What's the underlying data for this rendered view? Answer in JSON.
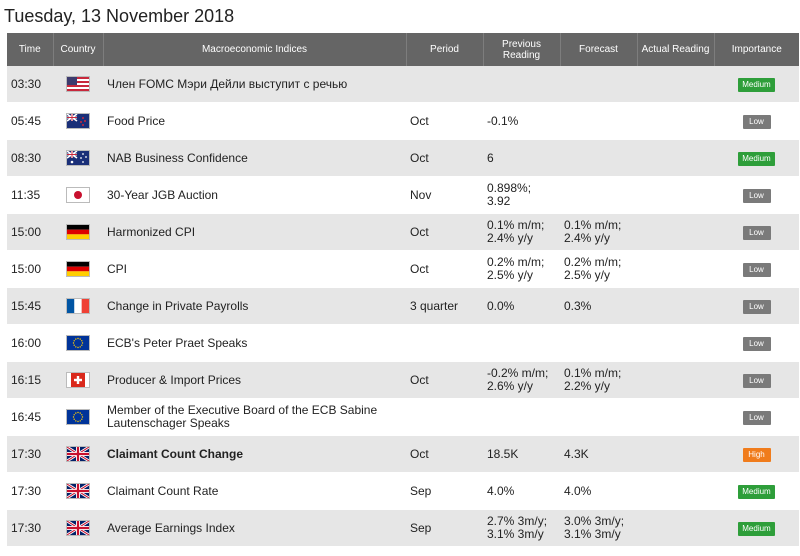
{
  "date_title": "Tuesday, 13 November 2018",
  "columns": {
    "time": "Time",
    "country": "Country",
    "indices": "Macroeconomic Indices",
    "period": "Period",
    "previous": "Previous Reading",
    "forecast": "Forecast",
    "actual": "Actual Reading",
    "importance": "Importance"
  },
  "colors": {
    "medium": "#2e9e3a",
    "low": "#7a7a7a",
    "high": "#f07c1c",
    "header": "#656565"
  },
  "rows": [
    {
      "time": "03:30",
      "flag": "us-flag-icon",
      "name": "Член FOMC Мэри Дейли выступит с речью",
      "period": "",
      "previous": "",
      "forecast": "",
      "actual": "",
      "importance": "Medium",
      "level": "medium",
      "bold": false
    },
    {
      "time": "05:45",
      "flag": "nz-flag-icon",
      "name": "Food Price",
      "period": "Oct",
      "previous": "-0.1%",
      "forecast": "",
      "actual": "",
      "importance": "Low",
      "level": "low",
      "bold": false
    },
    {
      "time": "08:30",
      "flag": "au-flag-icon",
      "name": "NAB Business Confidence",
      "period": "Oct",
      "previous": "6",
      "forecast": "",
      "actual": "",
      "importance": "Medium",
      "level": "medium",
      "bold": false
    },
    {
      "time": "11:35",
      "flag": "jp-flag-icon",
      "name": "30-Year JGB Auction",
      "period": "Nov",
      "previous": "0.898%;\n3.92",
      "forecast": "",
      "actual": "",
      "importance": "Low",
      "level": "low",
      "bold": false
    },
    {
      "time": "15:00",
      "flag": "de-flag-icon",
      "name": "Harmonized CPI",
      "period": "Oct",
      "previous": "0.1% m/m;\n2.4% y/y",
      "forecast": "0.1% m/m;\n2.4% y/y",
      "actual": "",
      "importance": "Low",
      "level": "low",
      "bold": false
    },
    {
      "time": "15:00",
      "flag": "de-flag-icon",
      "name": "CPI",
      "period": "Oct",
      "previous": "0.2% m/m;\n2.5% y/y",
      "forecast": "0.2% m/m;\n2.5% y/y",
      "actual": "",
      "importance": "Low",
      "level": "low",
      "bold": false
    },
    {
      "time": "15:45",
      "flag": "fr-flag-icon",
      "name": "Change in Private Payrolls",
      "period": "3 quarter",
      "previous": "0.0%",
      "forecast": "0.3%",
      "actual": "",
      "importance": "Low",
      "level": "low",
      "bold": false
    },
    {
      "time": "16:00",
      "flag": "eu-flag-icon",
      "name": "ECB's Peter Praet Speaks",
      "period": "",
      "previous": "",
      "forecast": "",
      "actual": "",
      "importance": "Low",
      "level": "low",
      "bold": false
    },
    {
      "time": "16:15",
      "flag": "ch-flag-icon",
      "name": "Producer & Import Prices",
      "period": "Oct",
      "previous": "-0.2% m/m;\n2.6% y/y",
      "forecast": "0.1% m/m;\n2.2% y/y",
      "actual": "",
      "importance": "Low",
      "level": "low",
      "bold": false
    },
    {
      "time": "16:45",
      "flag": "eu-flag-icon",
      "name": "Member of the Executive Board of the ECB Sabine Lautenschager Speaks",
      "period": "",
      "previous": "",
      "forecast": "",
      "actual": "",
      "importance": "Low",
      "level": "low",
      "bold": false
    },
    {
      "time": "17:30",
      "flag": "uk-flag-icon",
      "name": "Claimant Count Change",
      "period": "Oct",
      "previous": "18.5K",
      "forecast": "4.3K",
      "actual": "",
      "importance": "High",
      "level": "high",
      "bold": true
    },
    {
      "time": "17:30",
      "flag": "uk-flag-icon",
      "name": "Claimant Count Rate",
      "period": "Sep",
      "previous": "4.0%",
      "forecast": "4.0%",
      "actual": "",
      "importance": "Medium",
      "level": "medium",
      "bold": false
    },
    {
      "time": "17:30",
      "flag": "uk-flag-icon",
      "name": "Average Earnings Index",
      "period": "Sep",
      "previous": "2.7% 3m/y;\n3.1% 3m/y",
      "forecast": "3.0% 3m/y;\n3.1% 3m/y",
      "actual": "",
      "importance": "Medium",
      "level": "medium",
      "bold": false
    }
  ]
}
